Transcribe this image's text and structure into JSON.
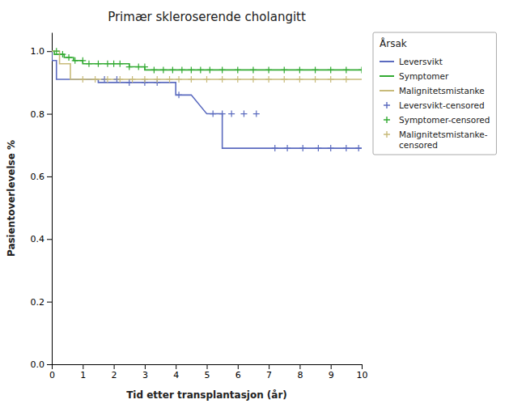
{
  "chart_data": {
    "type": "line",
    "title": "Primær skleroserende cholangitt",
    "x_label": "Tid etter transplantasjon (år)",
    "y_label": "Pasientoverlevelse %",
    "legend_title": "Årsak",
    "legend": "right",
    "xlim": [
      0,
      10
    ],
    "ylim": [
      0.0,
      1.06
    ],
    "xticks": [
      0,
      1,
      2,
      3,
      4,
      5,
      6,
      7,
      8,
      9,
      10
    ],
    "yticks": [
      {
        "value": 0.0,
        "label": "0.0"
      },
      0.2,
      0.4,
      0.6,
      0.8,
      {
        "value": 1.0,
        "label": "1.0"
      }
    ],
    "series": [
      {
        "name": "Leversvikt",
        "type": "line",
        "color": "#5b6bbf",
        "x": [
          0,
          0,
          0.15,
          0.15,
          1.5,
          1.5,
          4.0,
          4.0,
          4.5,
          4.5,
          5.0,
          5.0,
          5.5,
          5.5,
          7.2,
          7.2,
          10.0
        ],
        "values": [
          1.0,
          0.97,
          0.97,
          0.91,
          0.91,
          0.9,
          0.9,
          0.86,
          0.86,
          0.86,
          0.8,
          0.8,
          0.8,
          0.69,
          0.69,
          0.69,
          0.69
        ]
      },
      {
        "name": "Symptomer",
        "type": "line",
        "color": "#33aa33",
        "x": [
          0,
          0,
          0.08,
          0.08,
          0.4,
          0.4,
          0.7,
          0.7,
          1.0,
          1.0,
          2.5,
          2.5,
          3.0,
          3.0,
          10.0
        ],
        "values": [
          1.0,
          1.0,
          1.0,
          0.99,
          0.99,
          0.98,
          0.98,
          0.97,
          0.97,
          0.96,
          0.96,
          0.95,
          0.95,
          0.94,
          0.94
        ]
      },
      {
        "name": "Malignitetsmistanke",
        "type": "line",
        "color": "#c8bb7a",
        "x": [
          0,
          0,
          0.25,
          0.25,
          0.6,
          0.6,
          10.0
        ],
        "values": [
          1.0,
          1.0,
          1.0,
          0.96,
          0.96,
          0.91,
          0.91
        ]
      },
      {
        "name": "Leversvikt-censored",
        "type": "scatter",
        "marker": "plus",
        "color": "#5b6bbf",
        "x": [
          1.7,
          2.1,
          2.5,
          3.0,
          3.4,
          4.1,
          5.2,
          5.5,
          5.8,
          6.2,
          6.6,
          7.2,
          7.6,
          8.1,
          8.6,
          9.0,
          9.5,
          9.9
        ],
        "values": [
          0.91,
          0.91,
          0.9,
          0.9,
          0.9,
          0.86,
          0.8,
          0.8,
          0.8,
          0.8,
          0.8,
          0.69,
          0.69,
          0.69,
          0.69,
          0.69,
          0.69,
          0.69
        ]
      },
      {
        "name": "Symptomer-censored",
        "type": "scatter",
        "marker": "plus",
        "color": "#33aa33",
        "x": [
          0.15,
          0.35,
          0.55,
          0.75,
          1.0,
          1.2,
          1.5,
          1.8,
          2.0,
          2.2,
          2.5,
          2.8,
          3.0,
          3.3,
          3.6,
          3.9,
          4.2,
          4.5,
          4.8,
          5.1,
          5.5,
          6.0,
          6.5,
          7.0,
          7.5,
          8.0,
          8.5,
          9.0,
          9.5,
          10.0
        ],
        "values": [
          1.0,
          0.99,
          0.98,
          0.97,
          0.97,
          0.96,
          0.96,
          0.96,
          0.96,
          0.96,
          0.95,
          0.95,
          0.95,
          0.94,
          0.94,
          0.94,
          0.94,
          0.94,
          0.94,
          0.94,
          0.94,
          0.94,
          0.94,
          0.94,
          0.94,
          0.94,
          0.94,
          0.94,
          0.94,
          0.94
        ]
      },
      {
        "name": "Malignitetsmistanke-\ncensored",
        "type": "scatter",
        "marker": "plus",
        "color": "#c8bb7a",
        "x": [
          1.0,
          1.4,
          1.8,
          2.2,
          2.6,
          3.0,
          3.4,
          3.8,
          4.1,
          4.5,
          5.0,
          5.5,
          6.0,
          6.5,
          7.0,
          7.5,
          8.0,
          8.5,
          9.0,
          9.5
        ],
        "values": [
          0.91,
          0.91,
          0.91,
          0.91,
          0.91,
          0.91,
          0.91,
          0.91,
          0.91,
          0.91,
          0.91,
          0.91,
          0.91,
          0.91,
          0.91,
          0.91,
          0.91,
          0.91,
          0.91,
          0.91
        ]
      }
    ]
  }
}
